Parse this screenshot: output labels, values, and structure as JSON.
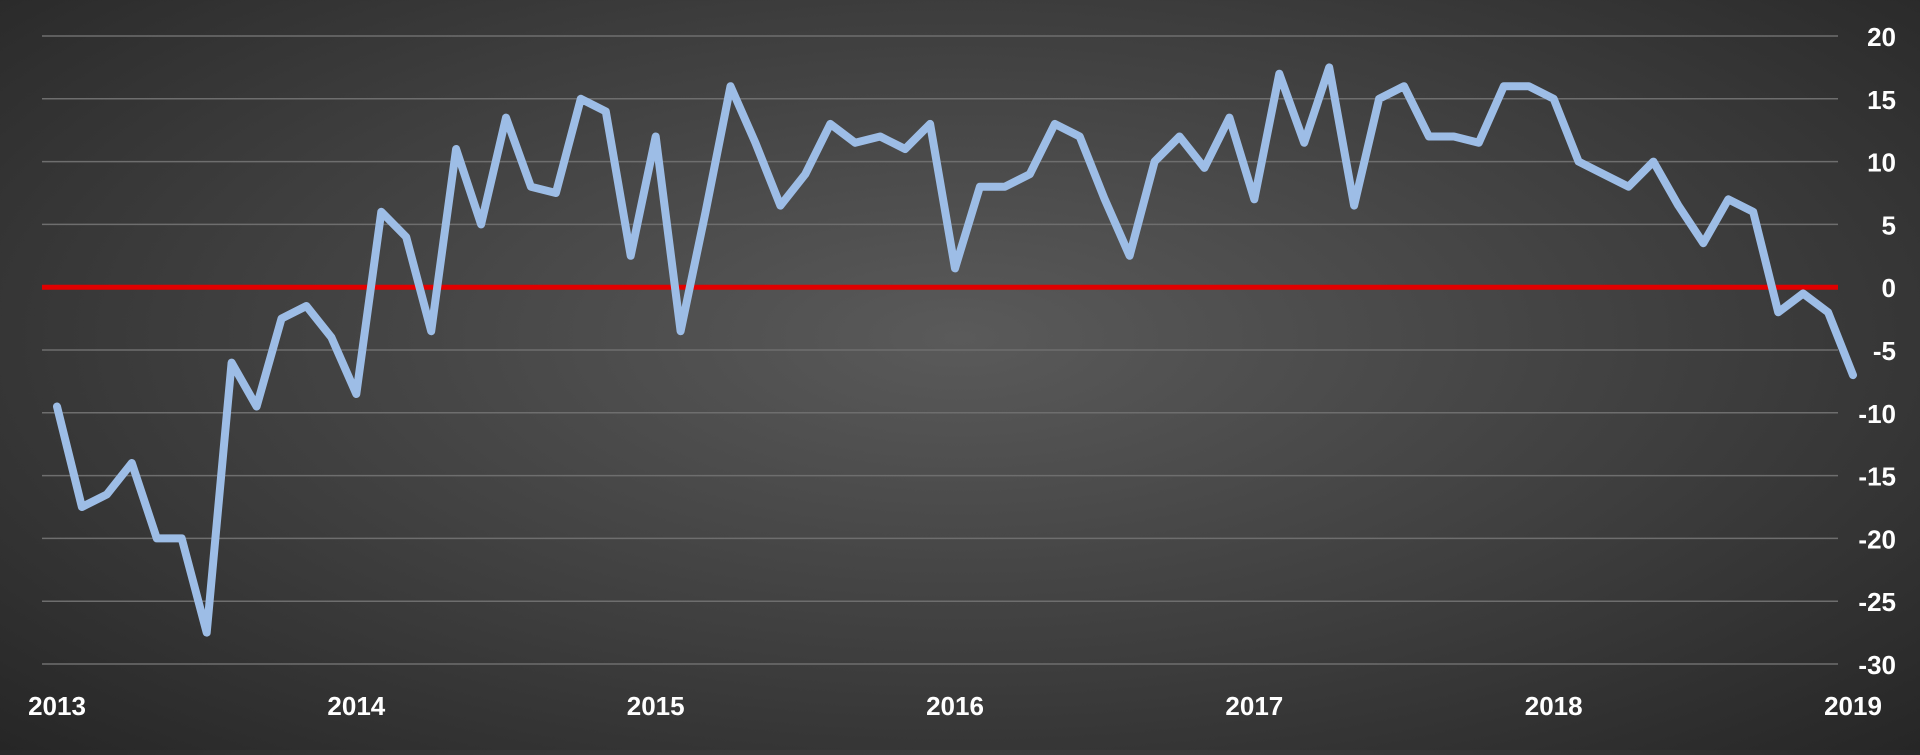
{
  "chart_data": {
    "type": "line",
    "title": "",
    "xlabel": "",
    "ylabel": "",
    "x_tick_labels": [
      "2013",
      "2014",
      "2015",
      "2016",
      "2017",
      "2018",
      "2019"
    ],
    "y_tick_labels": [
      "20",
      "15",
      "10",
      "5",
      "0",
      "-5",
      "-10",
      "-15",
      "-20",
      "-25",
      "-30"
    ],
    "ylim": [
      -30,
      20
    ],
    "xlim": [
      "2013-01",
      "2019-01"
    ],
    "grid": true,
    "legend": "none",
    "reference_line": {
      "value": 0,
      "color": "#e00000"
    },
    "series": [
      {
        "color": "#9dbde6",
        "x": [
          "2013-01",
          "2013-02",
          "2013-03",
          "2013-04",
          "2013-05",
          "2013-06",
          "2013-07",
          "2013-08",
          "2013-09",
          "2013-10",
          "2013-11",
          "2013-12",
          "2014-01",
          "2014-02",
          "2014-03",
          "2014-04",
          "2014-05",
          "2014-06",
          "2014-07",
          "2014-08",
          "2014-09",
          "2014-10",
          "2014-11",
          "2014-12",
          "2015-01",
          "2015-02",
          "2015-03",
          "2015-04",
          "2015-05",
          "2015-06",
          "2015-07",
          "2015-08",
          "2015-09",
          "2015-10",
          "2015-11",
          "2015-12",
          "2016-01",
          "2016-02",
          "2016-03",
          "2016-04",
          "2016-05",
          "2016-06",
          "2016-07",
          "2016-08",
          "2016-09",
          "2016-10",
          "2016-11",
          "2016-12",
          "2017-01",
          "2017-02",
          "2017-03",
          "2017-04",
          "2017-05",
          "2017-06",
          "2017-07",
          "2017-08",
          "2017-09",
          "2017-10",
          "2017-11",
          "2017-12",
          "2018-01",
          "2018-02",
          "2018-03",
          "2018-04",
          "2018-05",
          "2018-06",
          "2018-07",
          "2018-08",
          "2018-09",
          "2018-10",
          "2018-11",
          "2018-12",
          "2019-01"
        ],
        "values": [
          -9.5,
          -17.5,
          -16.5,
          -14,
          -20,
          -20,
          -27.5,
          -6,
          -9.5,
          -2.5,
          -1.5,
          -4,
          -8.5,
          6,
          4,
          -3.5,
          11,
          5,
          13.5,
          8,
          7.5,
          15,
          14,
          2.5,
          12,
          -3.5,
          6,
          16,
          11.5,
          6.5,
          9,
          13,
          11.5,
          12,
          11,
          13,
          1.5,
          8,
          8,
          9,
          13,
          12,
          7,
          2.5,
          10,
          12,
          9.5,
          13.5,
          7,
          17,
          11.5,
          17.5,
          6.5,
          15,
          16,
          12,
          12,
          11.5,
          16,
          16,
          15,
          10,
          9,
          8,
          10,
          6.5,
          3.5,
          7,
          6,
          -2,
          -0.5,
          -2,
          -7
        ]
      }
    ]
  }
}
